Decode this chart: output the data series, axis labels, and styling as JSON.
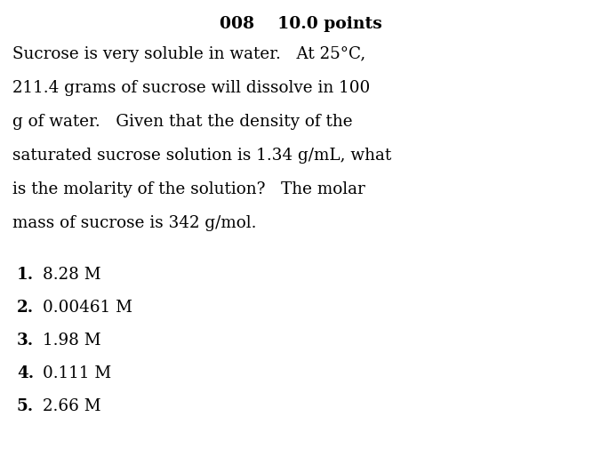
{
  "title": "008    10.0 points",
  "body_lines": [
    "Sucrose is very soluble in water.   At 25°C,",
    "211.4 grams of sucrose will dissolve in 100",
    "g of water.   Given that the density of the",
    "saturated sucrose solution is 1.34 g/mL, what",
    "is the molarity of the solution?   The molar",
    "mass of sucrose is 342 g/mol."
  ],
  "choices": [
    {
      "num": "1.",
      "text": "8.28 M"
    },
    {
      "num": "2.",
      "text": "0.00461 M"
    },
    {
      "num": "3.",
      "text": "1.98 M"
    },
    {
      "num": "4.",
      "text": "0.111 M"
    },
    {
      "num": "5.",
      "text": "2.66 M"
    }
  ],
  "background_color": "#ffffff",
  "text_color": "#000000",
  "title_fontsize": 13.5,
  "body_fontsize": 13.2,
  "choice_fontsize": 13.2,
  "fig_width": 6.76,
  "fig_height": 5.14
}
